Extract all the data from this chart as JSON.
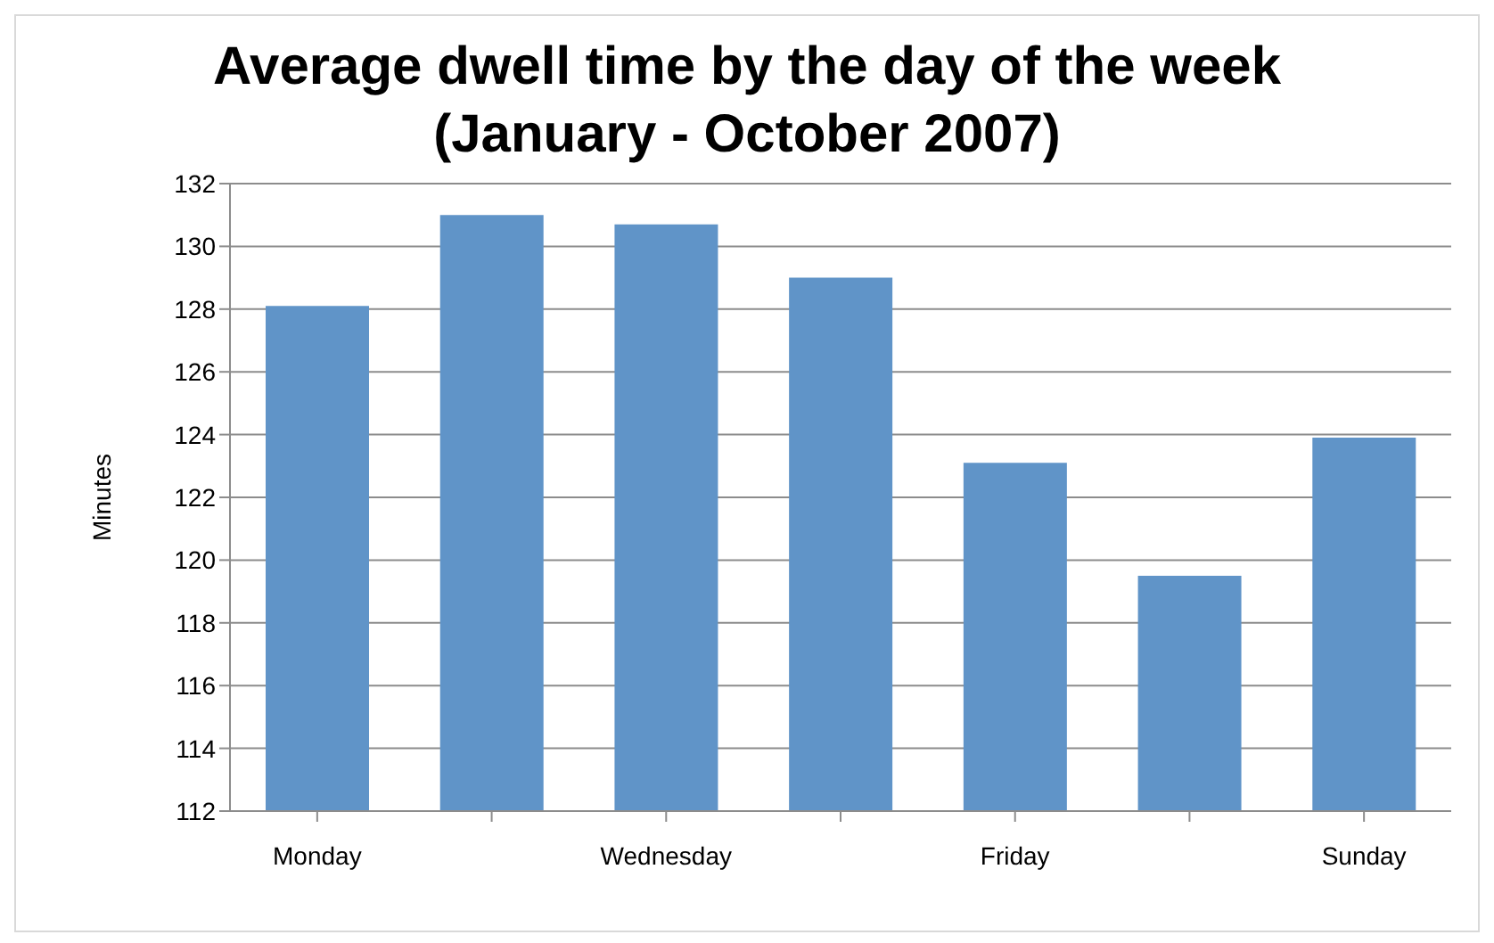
{
  "chart_data": {
    "type": "bar",
    "title": "Average dwell time by the day of the week (January - October 2007)",
    "ylabel": "Minutes",
    "categories": [
      "Monday",
      null,
      "Wednesday",
      null,
      "Friday",
      null,
      "Sunday"
    ],
    "values": [
      128.1,
      131.0,
      130.7,
      129.0,
      123.1,
      119.5,
      123.9
    ],
    "color": "#6094c8",
    "ylim": [
      112,
      132
    ],
    "yticks": [
      112,
      114,
      116,
      118,
      120,
      122,
      124,
      126,
      128,
      130,
      132
    ],
    "grid": "y",
    "legend": false
  }
}
